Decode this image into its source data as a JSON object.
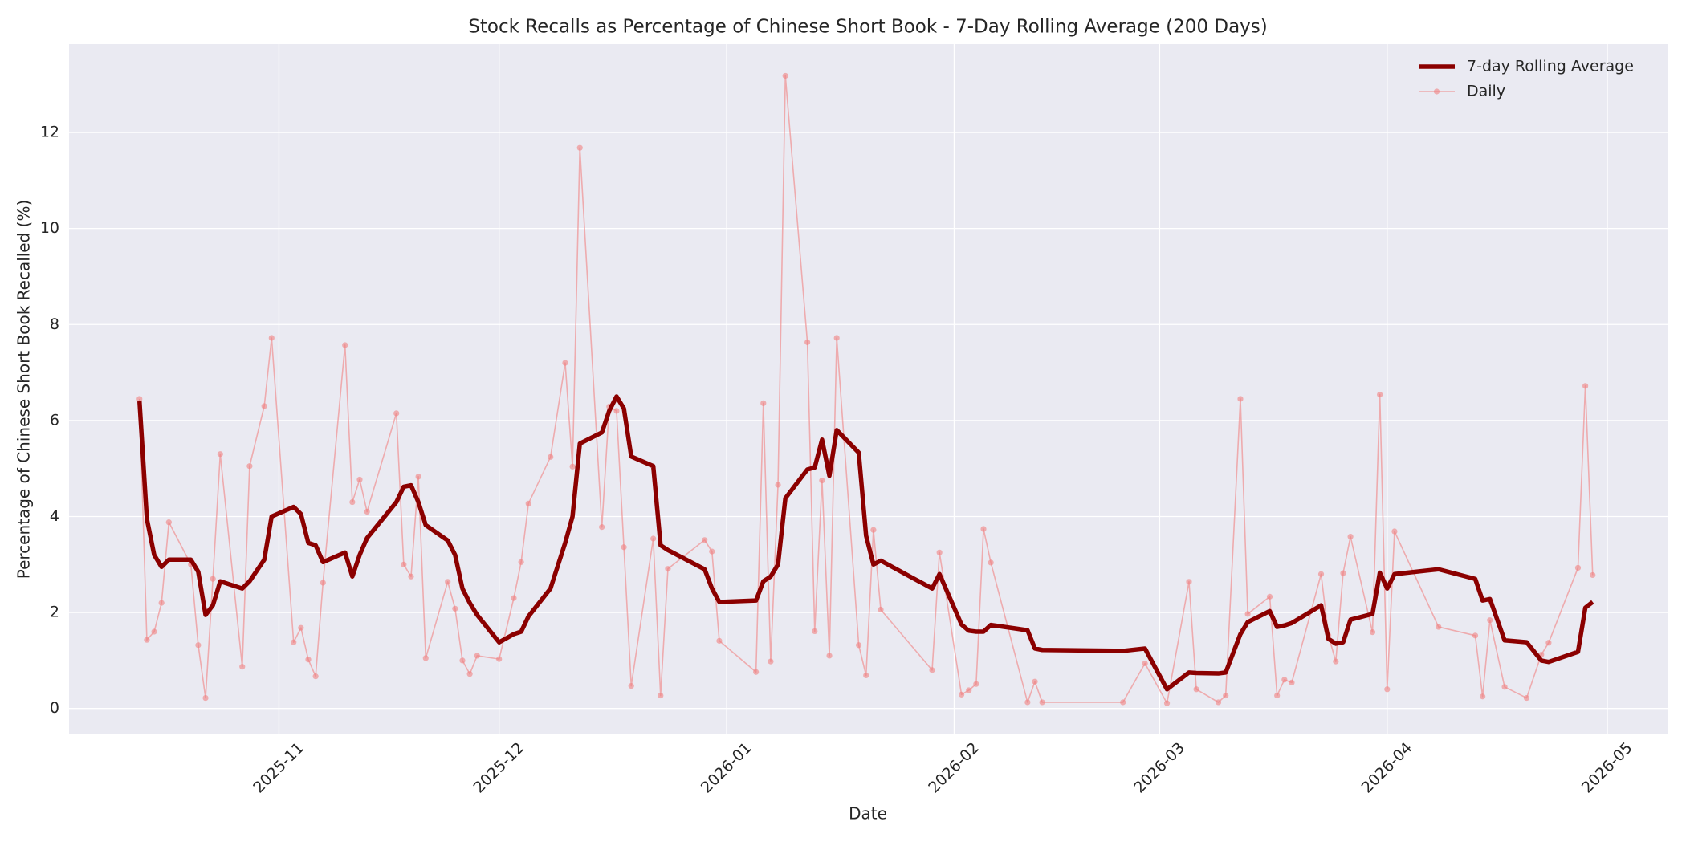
{
  "chart_data": {
    "type": "line",
    "title": "Stock Recalls as Percentage of Chinese Short Book - 7-Day Rolling Average (200 Days)",
    "xlabel": "Date",
    "ylabel": "Percentage of Chinese Short Book Recalled (%)",
    "x": [
      20374,
      20375,
      20376,
      20377,
      20378,
      20381,
      20382,
      20383,
      20384,
      20385,
      20388,
      20389,
      20391,
      20392,
      20395,
      20396,
      20397,
      20398,
      20399,
      20402,
      20403,
      20404,
      20405,
      20409,
      20410,
      20411,
      20412,
      20413,
      20416,
      20417,
      20418,
      20419,
      20420,
      20423,
      20425,
      20426,
      20427,
      20430,
      20432,
      20433,
      20434,
      20437,
      20438,
      20439,
      20440,
      20441,
      20444,
      20445,
      20446,
      20451,
      20452,
      20453,
      20458,
      20459,
      20460,
      20461,
      20462,
      20465,
      20466,
      20467,
      20468,
      20469,
      20472,
      20473,
      20474,
      20475,
      20482,
      20483,
      20486,
      20487,
      20488,
      20489,
      20490,
      20495,
      20496,
      20497,
      20508,
      20511,
      20514,
      20517,
      20518,
      20521,
      20522,
      20524,
      20525,
      20528,
      20529,
      20530,
      20531,
      20535,
      20536,
      20537,
      20538,
      20539,
      20542,
      20543,
      20544,
      20545,
      20551,
      20556,
      20557,
      20558,
      20560,
      20563,
      20565,
      20566,
      20570,
      20571,
      20572
    ],
    "series": [
      {
        "name": "7-day Rolling Average",
        "color": "#8b0000",
        "values": [
          6.4,
          3.95,
          3.2,
          2.95,
          3.1,
          3.1,
          2.85,
          1.95,
          2.15,
          2.65,
          2.5,
          2.65,
          3.1,
          4.0,
          4.2,
          4.05,
          3.45,
          3.4,
          3.05,
          3.25,
          2.75,
          3.2,
          3.55,
          4.3,
          4.62,
          4.65,
          4.3,
          3.82,
          3.5,
          3.2,
          2.5,
          2.2,
          1.95,
          1.38,
          1.55,
          1.6,
          1.92,
          2.5,
          3.45,
          4.0,
          5.52,
          5.75,
          6.2,
          6.5,
          6.25,
          5.25,
          5.05,
          3.4,
          3.3,
          2.9,
          2.5,
          2.22,
          2.25,
          2.65,
          2.75,
          3.0,
          4.38,
          4.98,
          5.02,
          5.6,
          4.85,
          5.8,
          5.33,
          3.6,
          3.0,
          3.08,
          2.5,
          2.8,
          1.75,
          1.62,
          1.6,
          1.6,
          1.74,
          1.63,
          1.25,
          1.22,
          1.2,
          1.25,
          0.4,
          0.75,
          0.74,
          0.73,
          0.75,
          1.55,
          1.8,
          2.03,
          1.7,
          1.73,
          1.78,
          2.15,
          1.45,
          1.35,
          1.38,
          1.85,
          1.97,
          2.83,
          2.5,
          2.8,
          2.9,
          2.7,
          2.25,
          2.28,
          1.42,
          1.38,
          1.0,
          0.97,
          1.18,
          2.1,
          2.22
        ]
      },
      {
        "name": "Daily",
        "color": "#f08080",
        "values": [
          6.45,
          1.43,
          1.6,
          2.2,
          3.88,
          3.0,
          1.32,
          0.22,
          2.7,
          5.3,
          0.87,
          5.05,
          6.3,
          7.72,
          1.38,
          1.68,
          1.02,
          0.67,
          2.62,
          7.57,
          4.3,
          4.77,
          4.1,
          6.15,
          3.0,
          2.75,
          4.83,
          1.05,
          2.64,
          2.08,
          1.0,
          0.72,
          1.1,
          1.03,
          2.3,
          3.05,
          4.27,
          5.24,
          7.2,
          5.04,
          11.68,
          3.78,
          6.29,
          6.2,
          3.36,
          0.47,
          3.54,
          0.27,
          2.91,
          3.51,
          3.27,
          1.41,
          0.76,
          6.36,
          0.98,
          4.66,
          13.18,
          7.63,
          1.61,
          4.75,
          1.1,
          7.72,
          1.32,
          0.69,
          3.72,
          2.06,
          0.8,
          3.25,
          0.29,
          0.38,
          0.51,
          3.74,
          3.04,
          0.13,
          0.56,
          0.13,
          0.13,
          0.94,
          0.11,
          2.64,
          0.4,
          0.13,
          0.27,
          6.45,
          1.97,
          2.33,
          0.27,
          0.6,
          0.54,
          2.8,
          1.52,
          0.98,
          2.82,
          3.58,
          1.59,
          6.54,
          0.4,
          3.69,
          1.7,
          1.52,
          0.25,
          1.84,
          0.45,
          0.22,
          1.12,
          1.37,
          2.93,
          6.72,
          2.78
        ]
      }
    ],
    "xlim": [
      20364.4,
      20582.2
    ],
    "xticks": [
      {
        "value": 20393,
        "label": "2025-11"
      },
      {
        "value": 20423,
        "label": "2025-12"
      },
      {
        "value": 20454,
        "label": "2026-01"
      },
      {
        "value": 20485,
        "label": "2026-02"
      },
      {
        "value": 20513,
        "label": "2026-03"
      },
      {
        "value": 20544,
        "label": "2026-04"
      },
      {
        "value": 20574,
        "label": "2026-05"
      }
    ],
    "ylim": [
      -0.54,
      13.84
    ],
    "yticks": [
      0,
      2,
      4,
      6,
      8,
      10,
      12
    ],
    "grid": true,
    "legend": "upper right"
  }
}
